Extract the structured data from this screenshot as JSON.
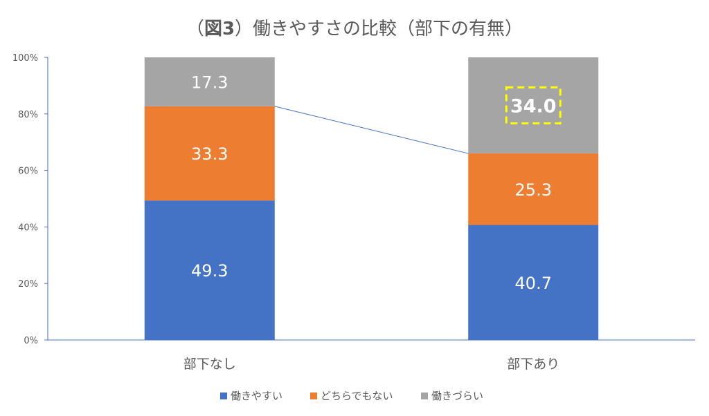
{
  "chart_data": {
    "type": "bar",
    "stacked": true,
    "percent_scale": true,
    "title": {
      "open_paren": "（",
      "fig_label": "図3",
      "close_paren": "）",
      "text": "働きやすさの比較（部下の有無）"
    },
    "categories": [
      "部下なし",
      "部下あり"
    ],
    "series": [
      {
        "name": "働きやすい",
        "values": [
          49.3,
          40.7
        ],
        "color": "#4472C4"
      },
      {
        "name": "どちらでもない",
        "values": [
          33.3,
          25.3
        ],
        "color": "#ED7D31"
      },
      {
        "name": "働きづらい",
        "values": [
          17.3,
          34.0
        ],
        "color": "#A5A5A5"
      }
    ],
    "value_labels": [
      [
        "49.3",
        "40.7"
      ],
      [
        "33.3",
        "25.3"
      ],
      [
        "17.3",
        "34.0"
      ]
    ],
    "highlight": {
      "series_index": 2,
      "category_index": 1,
      "border_color": "#FFFF00"
    },
    "series_lines": true,
    "yticks": [
      "0%",
      "20%",
      "40%",
      "60%",
      "80%",
      "100%"
    ],
    "ylim": [
      0,
      100
    ],
    "xlabel": "",
    "ylabel": "",
    "grid": false,
    "legend": "bottom"
  }
}
